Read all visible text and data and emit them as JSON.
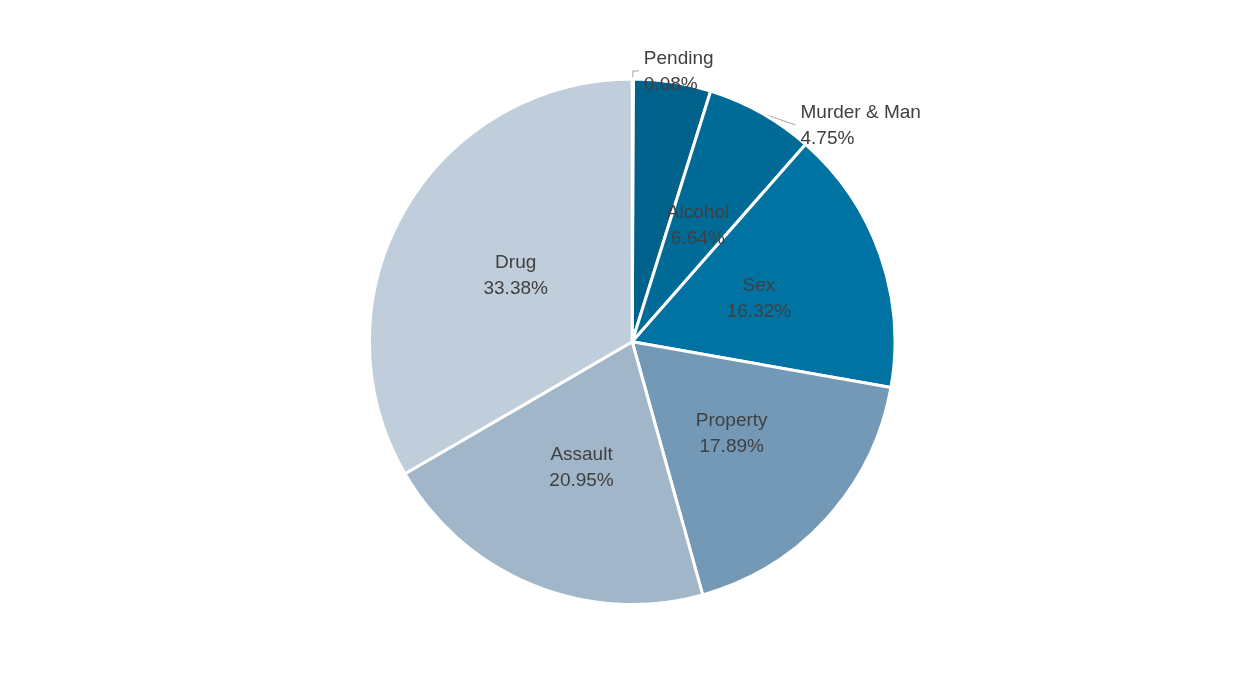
{
  "chart_data": {
    "type": "pie",
    "categories": [
      "Pending",
      "Murder & Man",
      "Alcohol",
      "Sex",
      "Property",
      "Assault",
      "Drug"
    ],
    "values": [
      0.08,
      4.75,
      6.64,
      16.32,
      17.89,
      20.95,
      33.38
    ],
    "colors": [
      "#2e5f80",
      "#00618a",
      "#006b96",
      "#0073a3",
      "#7499b6",
      "#a1b6c9",
      "#c0cedb"
    ],
    "value_labels": [
      "0.08%",
      "4.75%",
      "6.64%",
      "16.32%",
      "17.89%",
      "20.95%",
      "33.38%"
    ],
    "legend": false
  }
}
